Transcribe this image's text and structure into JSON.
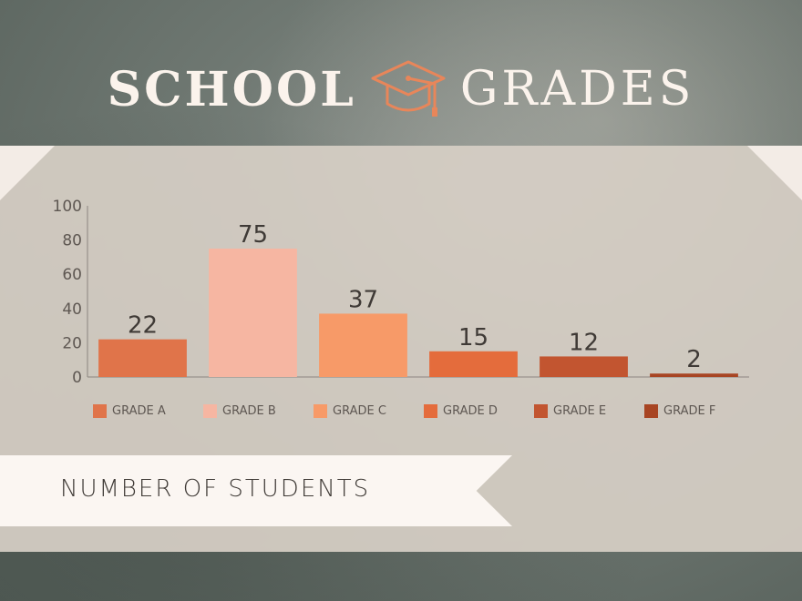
{
  "title": {
    "word1": "SCHOOL",
    "word2": "GRADES",
    "icon": "graduation-cap-icon",
    "color": "#fbf3ec",
    "icon_color": "#e8865a"
  },
  "subtitle": "NUMBER OF STUDENTS",
  "chart_data": {
    "type": "bar",
    "categories": [
      "GRADE A",
      "GRADE B",
      "GRADE C",
      "GRADE D",
      "GRADE E",
      "GRADE F"
    ],
    "values": [
      22,
      75,
      37,
      15,
      12,
      2
    ],
    "data_labels": [
      "22",
      "75",
      "37",
      "15",
      "12",
      "2"
    ],
    "colors": [
      "#e0744a",
      "#f6b6a2",
      "#f79a68",
      "#e46c3c",
      "#c25530",
      "#a84523"
    ],
    "ylim": [
      0,
      100
    ],
    "yticks": [
      0,
      20,
      40,
      60,
      80,
      100
    ],
    "xlabel": "",
    "ylabel": "",
    "grid": false,
    "legend": "bottom"
  }
}
